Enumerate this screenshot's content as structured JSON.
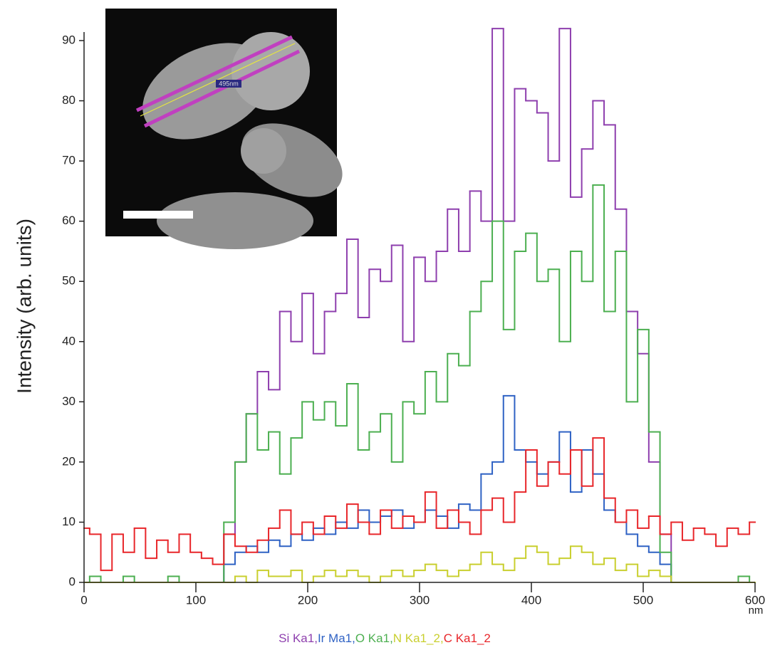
{
  "chart_data": {
    "type": "step",
    "y_label": "Intensity (arb. units)",
    "x_unit": "nm",
    "legend_separator": ",",
    "x": [
      0,
      10,
      20,
      30,
      40,
      50,
      60,
      70,
      80,
      90,
      100,
      110,
      120,
      130,
      140,
      150,
      160,
      170,
      180,
      190,
      200,
      210,
      220,
      230,
      240,
      250,
      260,
      270,
      280,
      290,
      300,
      310,
      320,
      330,
      340,
      350,
      360,
      370,
      380,
      390,
      400,
      410,
      420,
      430,
      440,
      450,
      460,
      470,
      480,
      490,
      500,
      510,
      520,
      530,
      540,
      550,
      560,
      570,
      580,
      590,
      600
    ],
    "series": [
      {
        "name": "Si Ka1",
        "color": "#8e3fae",
        "values": [
          0,
          0,
          0,
          0,
          0,
          0,
          0,
          0,
          0,
          0,
          0,
          0,
          0,
          8,
          20,
          28,
          35,
          32,
          45,
          40,
          48,
          38,
          45,
          48,
          57,
          44,
          52,
          50,
          56,
          40,
          54,
          50,
          55,
          62,
          55,
          65,
          60,
          92,
          60,
          82,
          80,
          78,
          70,
          92,
          64,
          72,
          80,
          76,
          62,
          45,
          38,
          20,
          8,
          0,
          0,
          0,
          0,
          0,
          0,
          0,
          0
        ]
      },
      {
        "name": "Ir Ma1",
        "color": "#2f62c4",
        "values": [
          0,
          0,
          0,
          0,
          0,
          0,
          0,
          0,
          0,
          0,
          0,
          0,
          0,
          3,
          5,
          6,
          5,
          7,
          6,
          8,
          7,
          9,
          8,
          10,
          9,
          12,
          10,
          11,
          12,
          9,
          10,
          12,
          11,
          9,
          13,
          12,
          18,
          20,
          31,
          22,
          20,
          18,
          20,
          25,
          15,
          22,
          18,
          12,
          10,
          8,
          6,
          5,
          3,
          0,
          0,
          0,
          0,
          0,
          0,
          0,
          0
        ]
      },
      {
        "name": "O Ka1",
        "color": "#4caf50",
        "values": [
          0,
          1,
          0,
          0,
          1,
          0,
          0,
          0,
          1,
          0,
          0,
          0,
          0,
          10,
          20,
          28,
          22,
          25,
          18,
          24,
          30,
          27,
          30,
          26,
          33,
          22,
          25,
          28,
          20,
          30,
          28,
          35,
          30,
          38,
          36,
          45,
          50,
          60,
          42,
          55,
          58,
          50,
          52,
          40,
          55,
          50,
          66,
          45,
          55,
          30,
          42,
          25,
          5,
          0,
          0,
          0,
          0,
          0,
          0,
          1,
          0
        ]
      },
      {
        "name": "N Ka1_2",
        "color": "#c9cf2e",
        "values": [
          0,
          0,
          0,
          0,
          0,
          0,
          0,
          0,
          0,
          0,
          0,
          0,
          0,
          0,
          1,
          0,
          2,
          1,
          1,
          2,
          0,
          1,
          2,
          1,
          2,
          1,
          0,
          1,
          2,
          1,
          2,
          3,
          2,
          1,
          2,
          3,
          5,
          3,
          2,
          4,
          6,
          5,
          3,
          4,
          6,
          5,
          3,
          4,
          2,
          3,
          1,
          2,
          1,
          0,
          0,
          0,
          0,
          0,
          0,
          0,
          0
        ]
      },
      {
        "name": "C Ka1_2",
        "color": "#e8262a",
        "values": [
          9,
          8,
          2,
          8,
          5,
          9,
          4,
          7,
          5,
          8,
          5,
          4,
          3,
          8,
          6,
          5,
          7,
          9,
          12,
          8,
          10,
          8,
          11,
          9,
          13,
          10,
          8,
          12,
          9,
          11,
          10,
          15,
          9,
          12,
          10,
          8,
          12,
          14,
          10,
          15,
          22,
          16,
          20,
          18,
          22,
          16,
          24,
          14,
          10,
          12,
          9,
          11,
          8,
          10,
          7,
          9,
          8,
          6,
          9,
          8,
          10
        ]
      }
    ],
    "xlim": [
      0,
      600
    ],
    "xticks": [
      0,
      100,
      200,
      300,
      400,
      500,
      600
    ],
    "ylim": [
      0,
      92
    ],
    "yticks": [
      0,
      10,
      20,
      30,
      40,
      50,
      60,
      70,
      80,
      90
    ]
  },
  "inset": {
    "label": "495nm"
  }
}
